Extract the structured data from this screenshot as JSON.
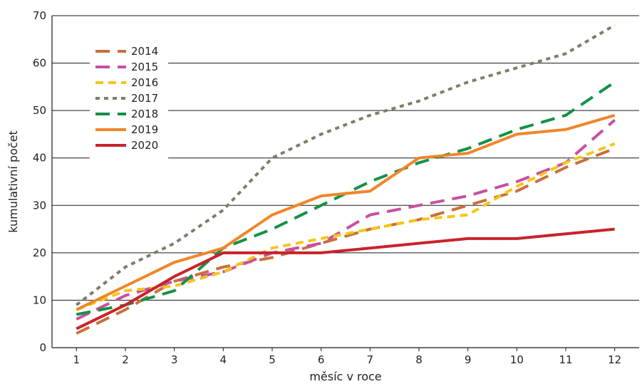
{
  "chart_data": {
    "type": "line",
    "xlabel": "měsíc v roce",
    "ylabel": "kumulativní  počet",
    "x": [
      1,
      2,
      3,
      4,
      5,
      6,
      7,
      8,
      9,
      10,
      11,
      12
    ],
    "xlim": [
      0.5,
      12.5
    ],
    "ylim": [
      0,
      70
    ],
    "x_ticks": [
      1,
      2,
      3,
      4,
      5,
      6,
      7,
      8,
      9,
      10,
      11,
      12
    ],
    "y_ticks": [
      0,
      10,
      20,
      30,
      40,
      50,
      60,
      70
    ],
    "grid": "horizontal",
    "legend_position": "top-left",
    "series": [
      {
        "name": "2014",
        "color": "#c8703a",
        "dash": "long-dash",
        "values": [
          3,
          8,
          14,
          17,
          19,
          22,
          25,
          27,
          30,
          33,
          38,
          42
        ]
      },
      {
        "name": "2015",
        "color": "#c94fa0",
        "dash": "long-dash",
        "values": [
          6,
          11,
          14,
          16,
          20,
          22,
          28,
          30,
          32,
          35,
          39,
          48
        ]
      },
      {
        "name": "2016",
        "color": "#f5c518",
        "dash": "dash",
        "values": [
          8,
          12,
          13,
          16,
          21,
          23,
          25,
          27,
          28,
          34,
          39,
          43
        ]
      },
      {
        "name": "2017",
        "color": "#7f7d6a",
        "dash": "dot",
        "values": [
          9,
          17,
          22,
          29,
          40,
          45,
          49,
          52,
          56,
          59,
          62,
          68
        ]
      },
      {
        "name": "2018",
        "color": "#149146",
        "dash": "long-dash",
        "values": [
          7,
          9,
          12,
          21,
          25,
          30,
          35,
          39,
          42,
          46,
          49,
          56
        ]
      },
      {
        "name": "2019",
        "color": "#f0862a",
        "dash": "solid",
        "values": [
          8,
          13,
          18,
          21,
          28,
          32,
          33,
          40,
          41,
          45,
          46,
          49
        ]
      },
      {
        "name": "2020",
        "color": "#c8232a",
        "dash": "solid",
        "values": [
          4,
          9,
          15,
          20,
          20,
          20,
          21,
          22,
          23,
          23,
          24,
          25
        ]
      }
    ]
  }
}
